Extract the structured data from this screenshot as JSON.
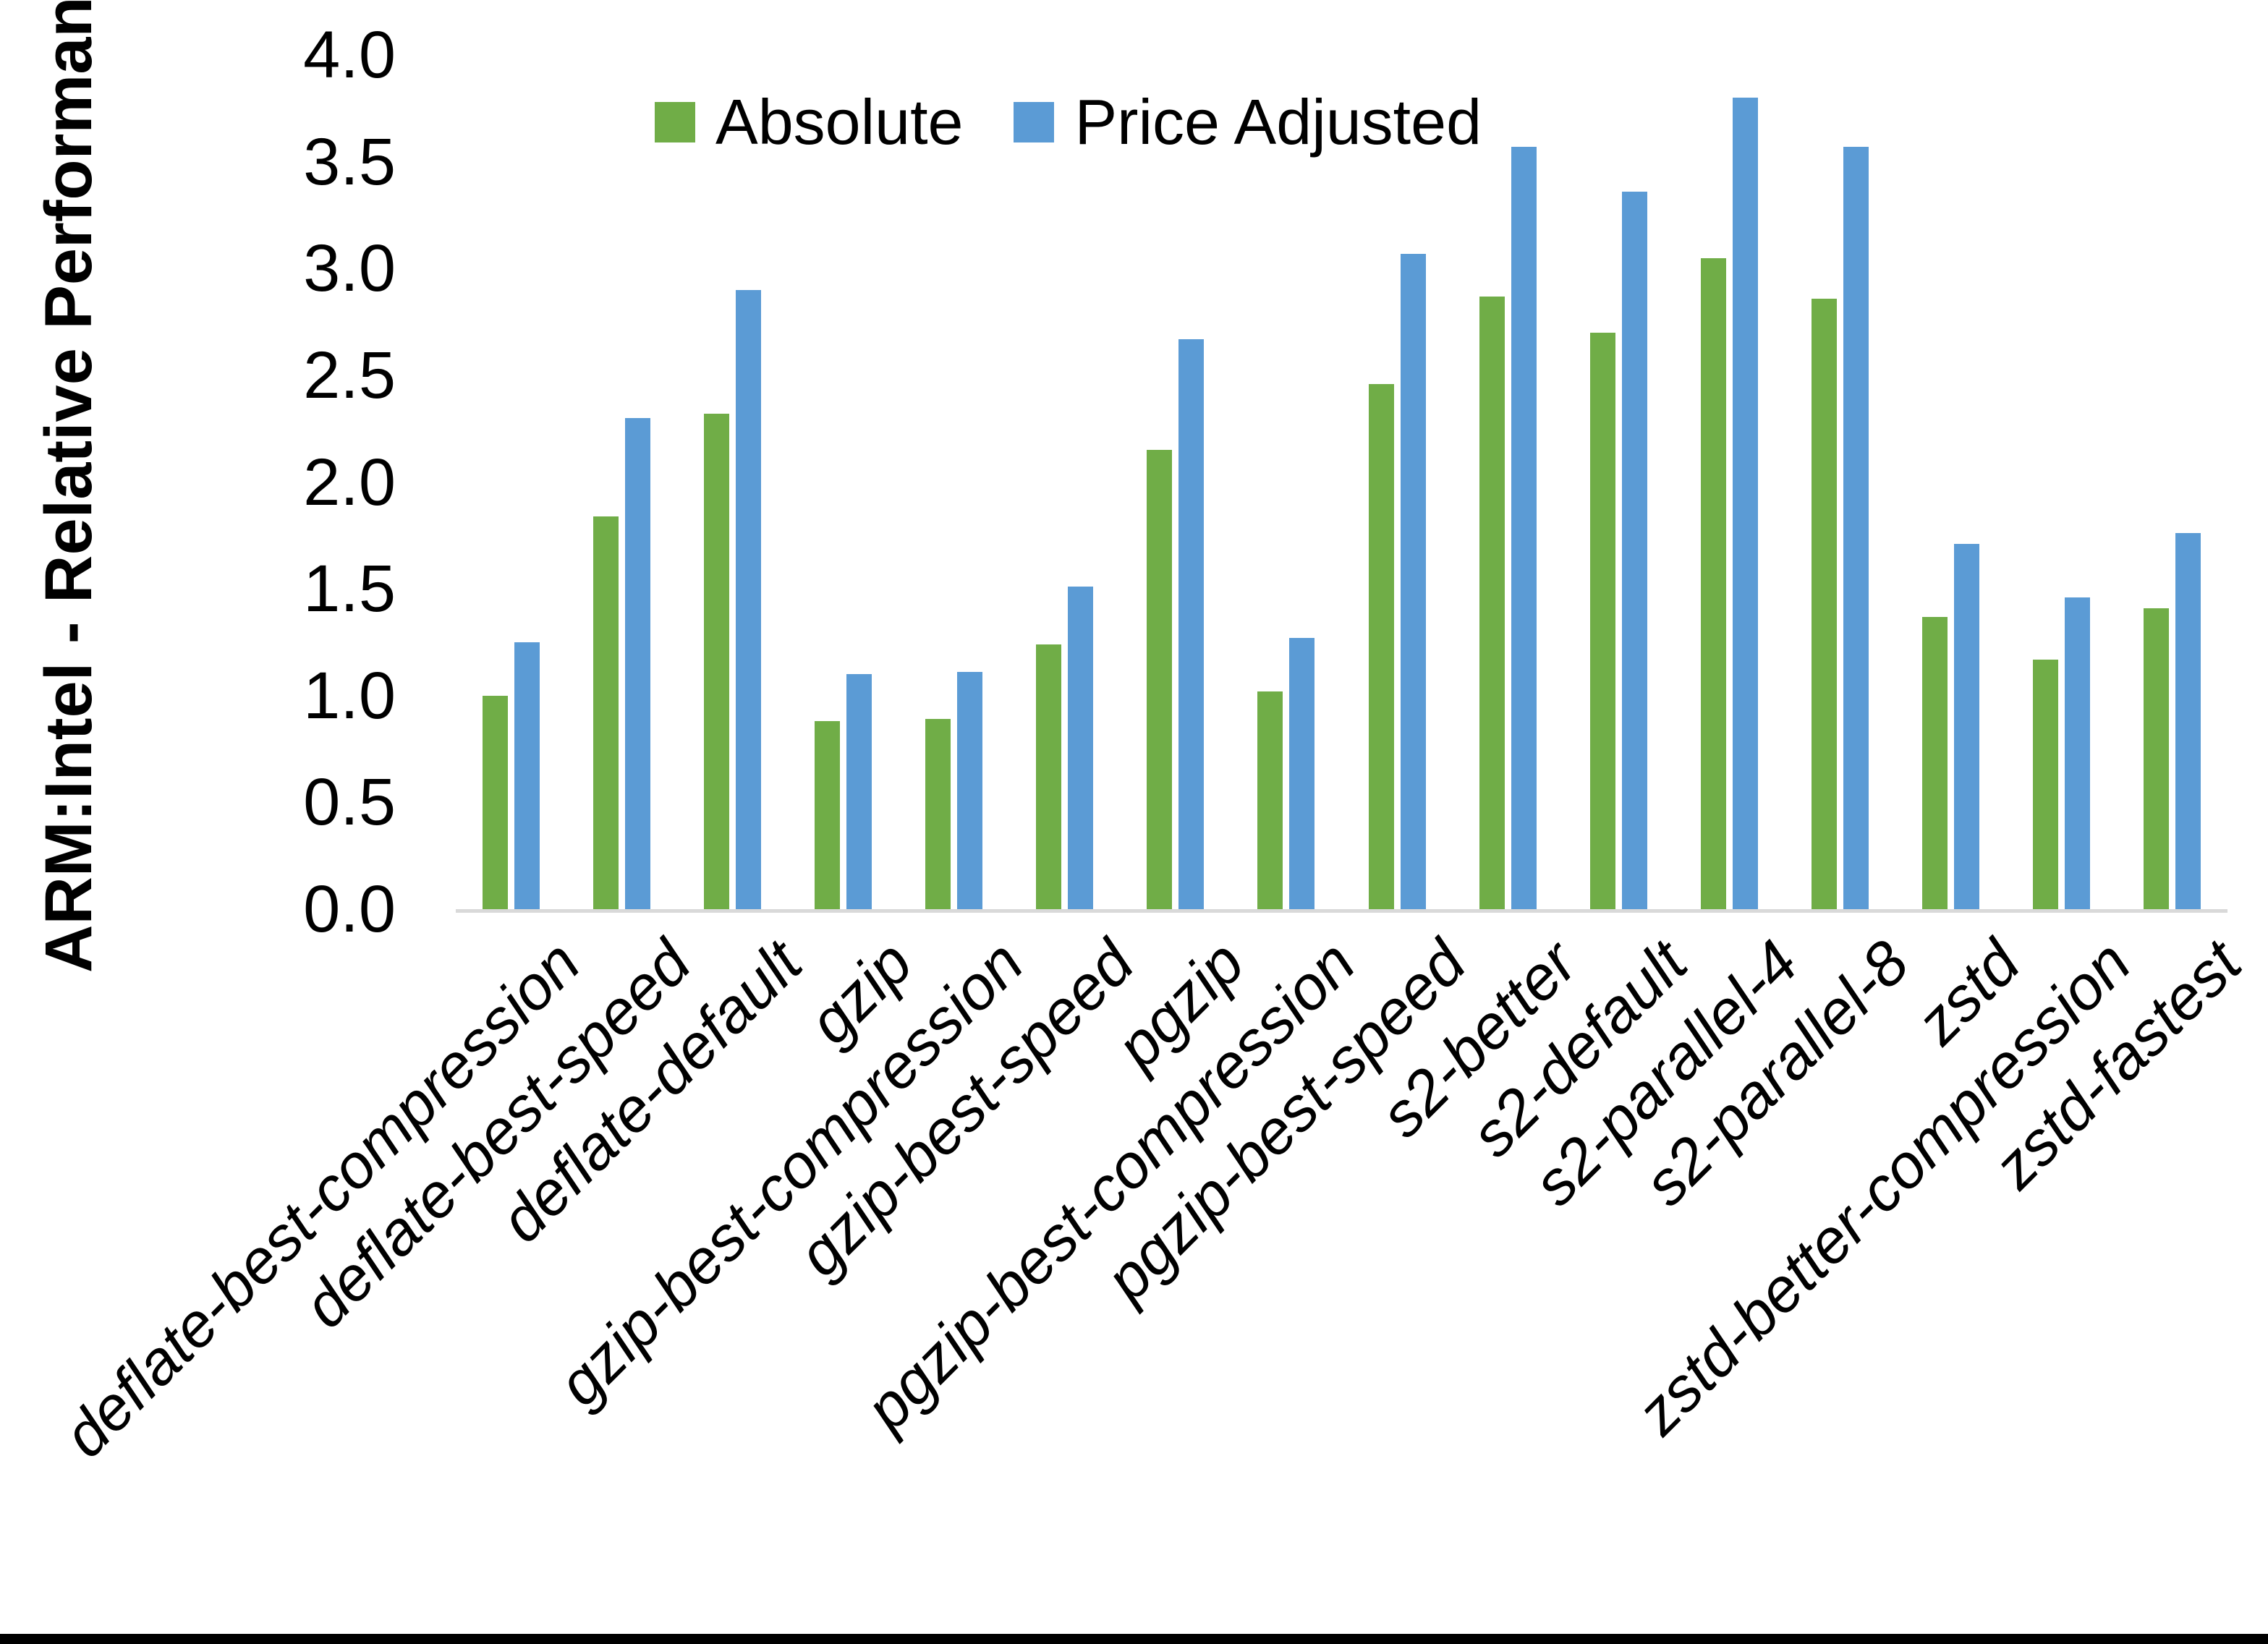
{
  "y_axis": {
    "title": "ARM:Intel - Relative Performance",
    "tick_labels": [
      "0.0",
      "0.5",
      "1.0",
      "1.5",
      "2.0",
      "2.5",
      "3.0",
      "3.5",
      "4.0"
    ]
  },
  "legend": {
    "items": [
      {
        "label": "Absolute",
        "color": "#70AD47"
      },
      {
        "label": "Price Adjusted",
        "color": "#5B9BD5"
      }
    ],
    "position": "top-center"
  },
  "colors": {
    "absolute_green": "#70AD47",
    "price_adjusted_blue": "#5B9BD5",
    "axis_line_gray": "#D9D9D9",
    "text_black": "#000000",
    "background": "#FFFFFF"
  },
  "chart_data": {
    "type": "bar",
    "title": "",
    "xlabel": "",
    "ylabel": "ARM:Intel - Relative Performance",
    "ylim": [
      0.0,
      4.0
    ],
    "ytick_step": 0.5,
    "grid": false,
    "legend_position": "top",
    "categories": [
      "deflate-best-compression",
      "deflate-best-speed",
      "deflate-default",
      "gzip",
      "gzip-best-compression",
      "gzip-best-speed",
      "pgzip",
      "pgzip-best-compression",
      "pgzip-best-speed",
      "s2-better",
      "s2-default",
      "s2-parallel-4",
      "s2-parallel-8",
      "zstd",
      "zstd-better-compression",
      "zstd-fastest"
    ],
    "series": [
      {
        "name": "Absolute",
        "color": "#70AD47",
        "values": [
          1.0,
          1.84,
          2.32,
          0.88,
          0.89,
          1.24,
          2.15,
          1.02,
          2.46,
          2.87,
          2.7,
          3.05,
          2.86,
          1.37,
          1.17,
          1.41
        ]
      },
      {
        "name": "Price Adjusted",
        "color": "#5B9BD5",
        "values": [
          1.25,
          2.3,
          2.9,
          1.1,
          1.11,
          1.51,
          2.67,
          1.27,
          3.07,
          3.57,
          3.36,
          3.8,
          3.57,
          1.71,
          1.46,
          1.76
        ]
      }
    ]
  }
}
